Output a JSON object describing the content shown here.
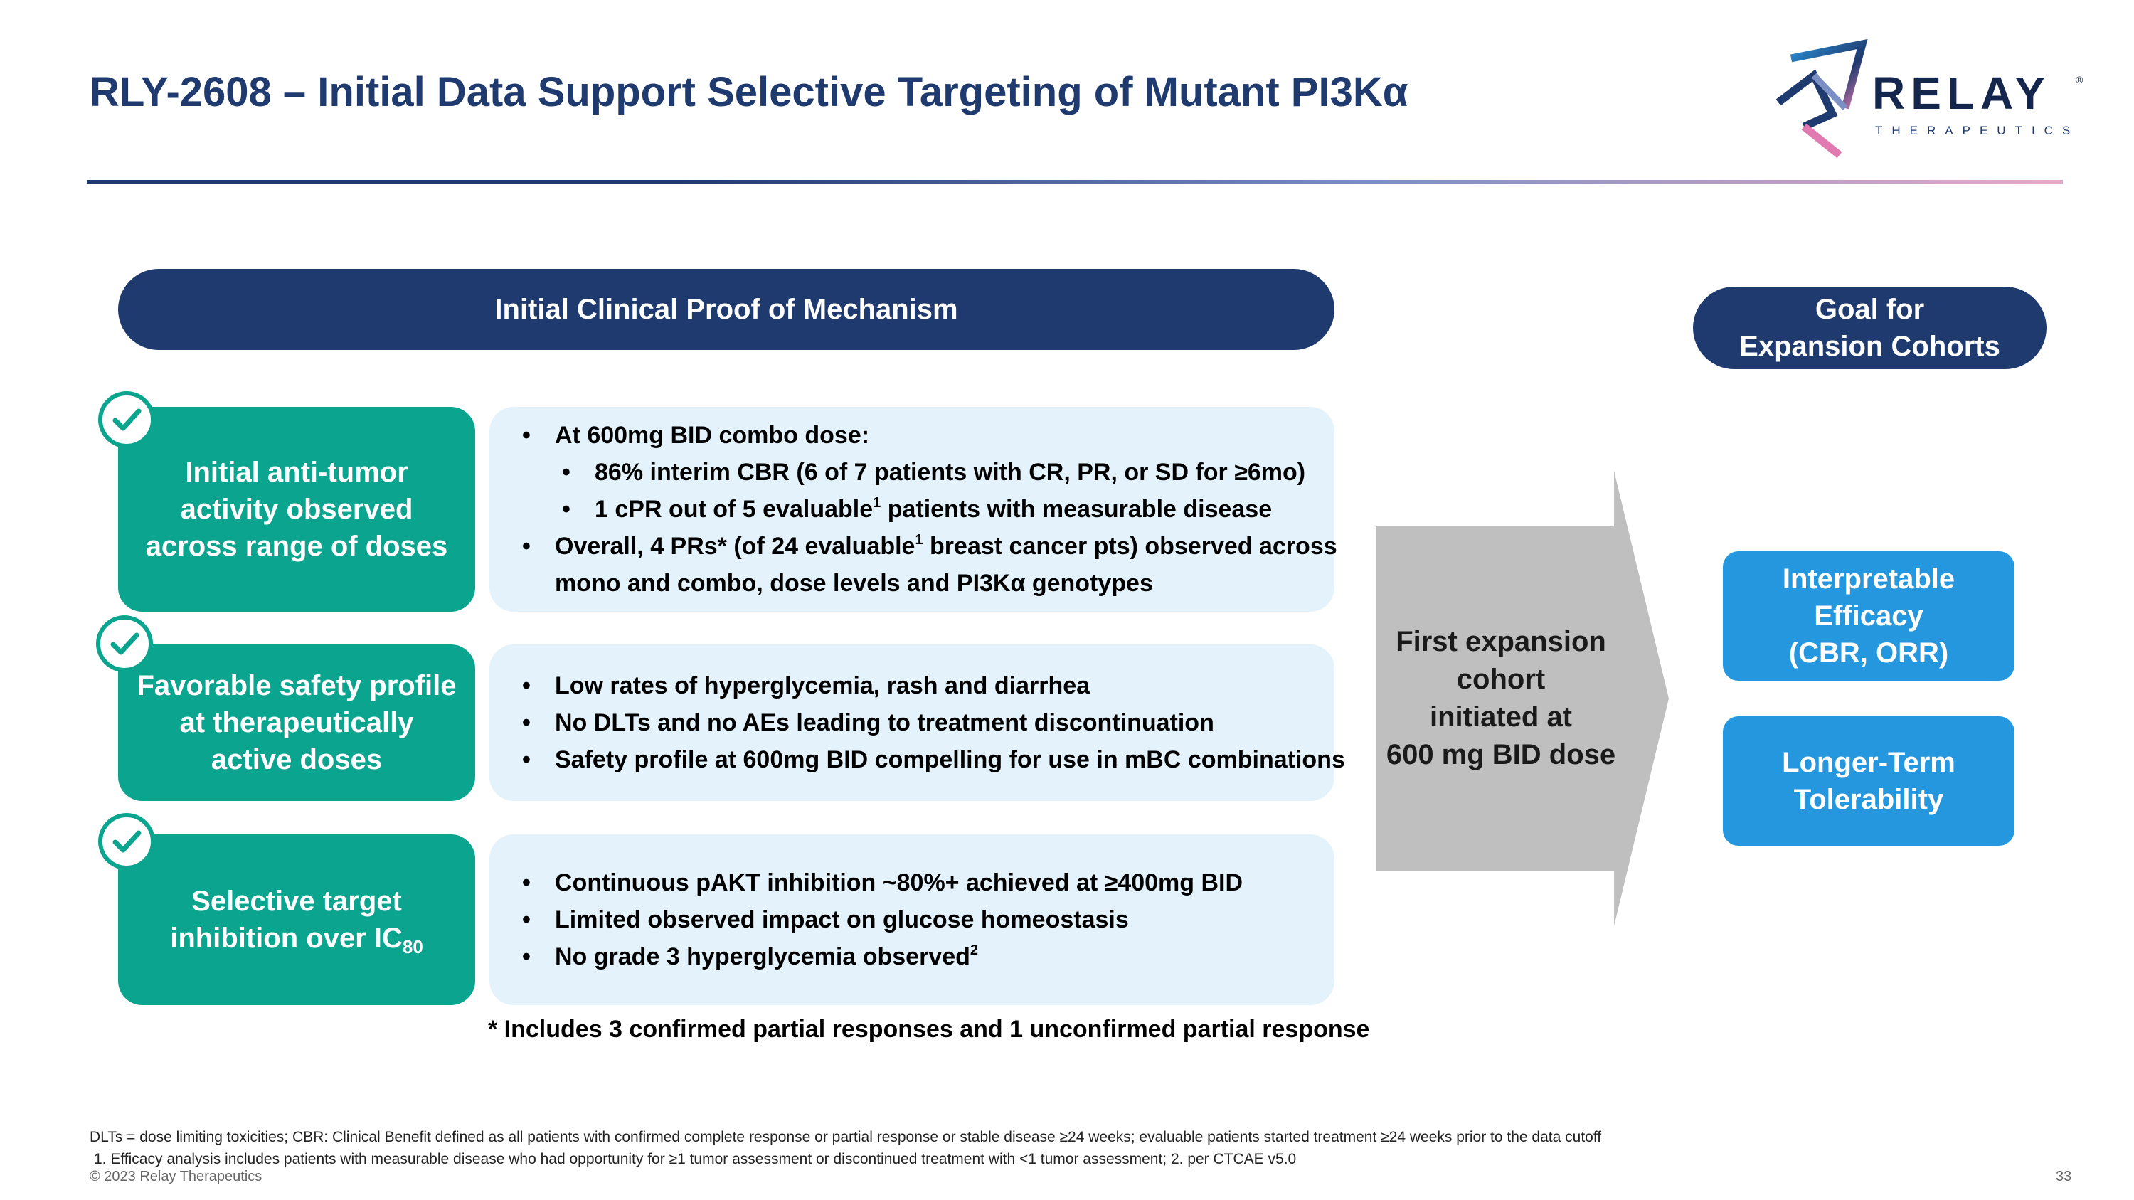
{
  "header": {
    "title": "RLY-2608 – Initial Data Support Selective Targeting of Mutant PI3Kα",
    "logo_name": "RELAY",
    "logo_reg": "®",
    "logo_sub": "THERAPEUTICS"
  },
  "colors": {
    "navy": "#1f3a6e",
    "teal": "#0ba58f",
    "light_blue": "#e4f3fb",
    "goal_blue": "#2597de",
    "arrow_gray": "#bfbfbf"
  },
  "main_banner": "Initial Clinical Proof of Mechanism",
  "goal_banner": {
    "line1": "Goal for",
    "line2": "Expansion Cohorts"
  },
  "rows": [
    {
      "label": {
        "line1": "Initial anti-tumor",
        "line2": "activity observed",
        "line3": "across range of doses"
      },
      "bullets": {
        "b1": "At 600mg BID combo dose:",
        "b1_sub1": "86% interim CBR (6 of 7 patients with CR, PR, or SD for ≥6mo)",
        "b1_sub2_pre": "1 cPR out of 5 evaluable",
        "b1_sub2_sup": "1",
        "b1_sub2_post": " patients with measurable disease",
        "b2_pre": "Overall, 4 PRs* (of 24 evaluable",
        "b2_sup": "1",
        "b2_post": " breast cancer pts) observed across",
        "b2_cont": "mono and combo, dose levels and PI3Kα genotypes"
      }
    },
    {
      "label": {
        "line1": "Favorable safety profile",
        "line2": "at therapeutically",
        "line3": "active doses"
      },
      "bullets": {
        "b1": "Low rates of hyperglycemia, rash and diarrhea",
        "b2": "No DLTs and no AEs leading to treatment discontinuation",
        "b3": "Safety profile at 600mg BID compelling for use in mBC combinations"
      }
    },
    {
      "label": {
        "line1": "Selective target",
        "line2_pre": "inhibition over IC",
        "line2_sub": "80"
      },
      "bullets": {
        "b1": "Continuous pAKT inhibition ~80%+ achieved at ≥400mg BID",
        "b2": "Limited observed impact on glucose homeostasis",
        "b3_pre": "No grade 3 hyperglycemia observed",
        "b3_sup": "2"
      }
    }
  ],
  "footnote_star": "* Includes 3 confirmed partial responses and 1 unconfirmed partial response",
  "arrow": {
    "line1": "First expansion",
    "line2": "cohort",
    "line3": "initiated at",
    "line4": "600 mg BID dose"
  },
  "goals": [
    {
      "line1": "Interpretable",
      "line2": "Efficacy",
      "line3": "(CBR, ORR)"
    },
    {
      "line1": "Longer-Term",
      "line2": "Tolerability"
    }
  ],
  "footer": {
    "line1": "DLTs = dose limiting toxicities;  CBR: Clinical Benefit defined as all patients with confirmed complete response or partial response or stable disease ≥24 weeks; evaluable patients started treatment ≥24 weeks prior to the data cutoff",
    "line2": "1. Efficacy analysis includes patients with measurable disease who had opportunity for ≥1 tumor assessment or discontinued treatment with <1 tumor assessment;  2. per CTCAE v5.0",
    "copyright": "© 2023 Relay Therapeutics",
    "page_number": "33"
  }
}
